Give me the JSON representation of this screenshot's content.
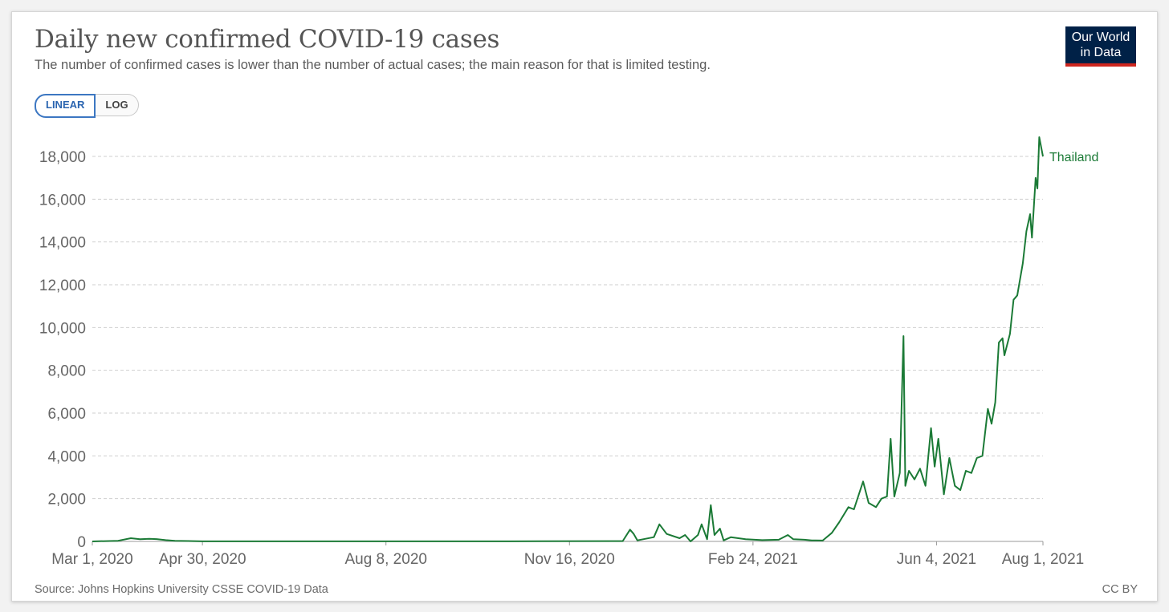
{
  "header": {
    "title": "Daily new confirmed COVID-19 cases",
    "subtitle": "The number of confirmed cases is lower than the number of actual cases; the main reason for that is limited testing.",
    "logo_line1": "Our World",
    "logo_line2": "in Data"
  },
  "scale_toggle": {
    "linear_label": "LINEAR",
    "log_label": "LOG",
    "selected": "LINEAR"
  },
  "footer": {
    "source": "Source: Johns Hopkins University CSSE COVID-19 Data",
    "license": "CC BY"
  },
  "colors": {
    "series": "#1b7a36",
    "logo_bg": "#002147",
    "logo_accent": "#ce261e",
    "toggle_active": "#3c77c2"
  },
  "chart_data": {
    "type": "line",
    "title": "Daily new confirmed COVID-19 cases",
    "xlabel": "",
    "ylabel": "",
    "x_ticks": [
      "Mar 1, 2020",
      "Apr 30, 2020",
      "Aug 8, 2020",
      "Nov 16, 2020",
      "Feb 24, 2021",
      "Jun 4, 2021",
      "Aug 1, 2021"
    ],
    "y_ticks": [
      "0",
      "2,000",
      "4,000",
      "6,000",
      "8,000",
      "10,000",
      "12,000",
      "14,000",
      "16,000",
      "18,000"
    ],
    "ylim": [
      0,
      18000
    ],
    "xlim": [
      "2020-03-01",
      "2021-08-01"
    ],
    "grid": "horizontal dashed",
    "legend": "label at line end",
    "series": [
      {
        "name": "Thailand",
        "points": [
          [
            "2020-03-01",
            0
          ],
          [
            "2020-03-15",
            30
          ],
          [
            "2020-03-22",
            150
          ],
          [
            "2020-03-27",
            100
          ],
          [
            "2020-04-01",
            120
          ],
          [
            "2020-04-05",
            110
          ],
          [
            "2020-04-10",
            60
          ],
          [
            "2020-04-15",
            30
          ],
          [
            "2020-04-22",
            20
          ],
          [
            "2020-04-30",
            5
          ],
          [
            "2020-05-15",
            3
          ],
          [
            "2020-07-01",
            5
          ],
          [
            "2020-09-01",
            5
          ],
          [
            "2020-11-01",
            8
          ],
          [
            "2020-12-15",
            15
          ],
          [
            "2020-12-19",
            550
          ],
          [
            "2020-12-21",
            350
          ],
          [
            "2020-12-23",
            50
          ],
          [
            "2021-01-01",
            200
          ],
          [
            "2021-01-04",
            800
          ],
          [
            "2021-01-08",
            350
          ],
          [
            "2021-01-15",
            150
          ],
          [
            "2021-01-18",
            300
          ],
          [
            "2021-01-21",
            0
          ],
          [
            "2021-01-25",
            300
          ],
          [
            "2021-01-27",
            800
          ],
          [
            "2021-01-30",
            100
          ],
          [
            "2021-02-01",
            1700
          ],
          [
            "2021-02-03",
            300
          ],
          [
            "2021-02-06",
            600
          ],
          [
            "2021-02-08",
            50
          ],
          [
            "2021-02-12",
            200
          ],
          [
            "2021-02-20",
            100
          ],
          [
            "2021-03-01",
            60
          ],
          [
            "2021-03-10",
            80
          ],
          [
            "2021-03-15",
            300
          ],
          [
            "2021-03-18",
            100
          ],
          [
            "2021-03-24",
            80
          ],
          [
            "2021-03-28",
            50
          ],
          [
            "2021-04-03",
            40
          ],
          [
            "2021-04-08",
            400
          ],
          [
            "2021-04-12",
            900
          ],
          [
            "2021-04-17",
            1600
          ],
          [
            "2021-04-20",
            1500
          ],
          [
            "2021-04-25",
            2800
          ],
          [
            "2021-04-28",
            1800
          ],
          [
            "2021-05-02",
            1600
          ],
          [
            "2021-05-05",
            2000
          ],
          [
            "2021-05-08",
            2100
          ],
          [
            "2021-05-10",
            4800
          ],
          [
            "2021-05-12",
            2100
          ],
          [
            "2021-05-15",
            3200
          ],
          [
            "2021-05-17",
            9600
          ],
          [
            "2021-05-18",
            2600
          ],
          [
            "2021-05-20",
            3300
          ],
          [
            "2021-05-23",
            2900
          ],
          [
            "2021-05-26",
            3400
          ],
          [
            "2021-05-29",
            2600
          ],
          [
            "2021-06-01",
            5300
          ],
          [
            "2021-06-03",
            3500
          ],
          [
            "2021-06-05",
            4800
          ],
          [
            "2021-06-08",
            2200
          ],
          [
            "2021-06-11",
            3900
          ],
          [
            "2021-06-14",
            2600
          ],
          [
            "2021-06-17",
            2400
          ],
          [
            "2021-06-20",
            3300
          ],
          [
            "2021-06-23",
            3200
          ],
          [
            "2021-06-26",
            3900
          ],
          [
            "2021-06-29",
            4000
          ],
          [
            "2021-07-02",
            6200
          ],
          [
            "2021-07-04",
            5500
          ],
          [
            "2021-07-06",
            6500
          ],
          [
            "2021-07-08",
            9300
          ],
          [
            "2021-07-10",
            9500
          ],
          [
            "2021-07-11",
            8700
          ],
          [
            "2021-07-14",
            9700
          ],
          [
            "2021-07-16",
            11300
          ],
          [
            "2021-07-18",
            11500
          ],
          [
            "2021-07-21",
            13000
          ],
          [
            "2021-07-23",
            14500
          ],
          [
            "2021-07-25",
            15300
          ],
          [
            "2021-07-26",
            14200
          ],
          [
            "2021-07-28",
            17000
          ],
          [
            "2021-07-29",
            16500
          ],
          [
            "2021-07-30",
            18900
          ],
          [
            "2021-08-01",
            18000
          ]
        ]
      }
    ]
  }
}
